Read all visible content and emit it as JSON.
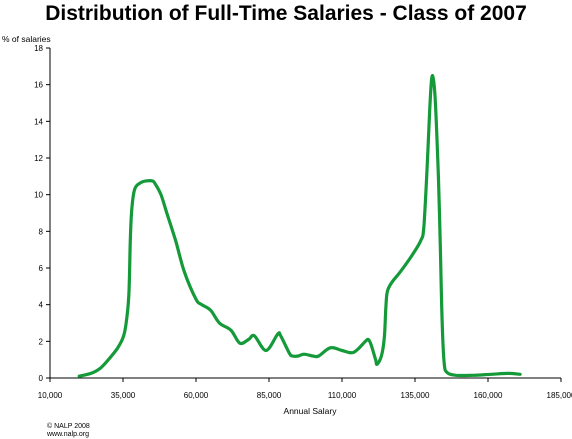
{
  "chart_data": {
    "type": "line",
    "title": "Distribution of Full-Time Salaries - Class of 2007",
    "xlabel": "Annual Salary",
    "ylabel": "% of salaries",
    "xlim": [
      10000,
      185000
    ],
    "ylim": [
      0,
      18
    ],
    "xticks": [
      "10,000",
      "35,000",
      "60,000",
      "85,000",
      "110,000",
      "135,000",
      "160,000",
      "185,000"
    ],
    "yticks": [
      "0",
      "2",
      "4",
      "6",
      "8",
      "10",
      "12",
      "14",
      "16",
      "18"
    ],
    "grid": false,
    "legend": "none",
    "series": [
      {
        "color": "#159a3a",
        "points": [
          [
            20000,
            0.1
          ],
          [
            24000,
            0.25
          ],
          [
            27000,
            0.5
          ],
          [
            30000,
            1.0
          ],
          [
            33000,
            1.6
          ],
          [
            35000,
            2.2
          ],
          [
            36000,
            2.9
          ],
          [
            37000,
            4.5
          ],
          [
            37500,
            7.5
          ],
          [
            38000,
            9.2
          ],
          [
            39000,
            10.3
          ],
          [
            41000,
            10.65
          ],
          [
            43000,
            10.75
          ],
          [
            45000,
            10.75
          ],
          [
            46000,
            10.6
          ],
          [
            48000,
            10.0
          ],
          [
            50000,
            9.0
          ],
          [
            53000,
            7.5
          ],
          [
            56000,
            5.8
          ],
          [
            60000,
            4.3
          ],
          [
            62000,
            4.0
          ],
          [
            65000,
            3.7
          ],
          [
            68000,
            3.0
          ],
          [
            72000,
            2.6
          ],
          [
            75000,
            1.9
          ],
          [
            78000,
            2.1
          ],
          [
            80000,
            2.3
          ],
          [
            84000,
            1.5
          ],
          [
            88000,
            2.4
          ],
          [
            89000,
            2.3
          ],
          [
            92000,
            1.35
          ],
          [
            93000,
            1.2
          ],
          [
            95000,
            1.2
          ],
          [
            97000,
            1.3
          ],
          [
            100000,
            1.2
          ],
          [
            102000,
            1.2
          ],
          [
            106000,
            1.65
          ],
          [
            110000,
            1.5
          ],
          [
            114000,
            1.4
          ],
          [
            118000,
            2.0
          ],
          [
            119000,
            2.1
          ],
          [
            120000,
            1.8
          ],
          [
            121500,
            1.0
          ],
          [
            122000,
            0.75
          ],
          [
            123500,
            1.2
          ],
          [
            124500,
            2.2
          ],
          [
            125000,
            3.8
          ],
          [
            125500,
            4.7
          ],
          [
            127000,
            5.2
          ],
          [
            130000,
            5.8
          ],
          [
            134000,
            6.7
          ],
          [
            137000,
            7.5
          ],
          [
            138000,
            8.2
          ],
          [
            139000,
            11.0
          ],
          [
            140000,
            14.5
          ],
          [
            140700,
            16.3
          ],
          [
            141300,
            16.3
          ],
          [
            142000,
            15.0
          ],
          [
            143000,
            11.0
          ],
          [
            143700,
            7.0
          ],
          [
            144300,
            3.0
          ],
          [
            145000,
            0.8
          ],
          [
            146000,
            0.3
          ],
          [
            149000,
            0.15
          ],
          [
            155000,
            0.15
          ],
          [
            161000,
            0.2
          ],
          [
            167000,
            0.25
          ],
          [
            171000,
            0.2
          ]
        ]
      }
    ]
  },
  "footer": {
    "line1": "© NALP 2008",
    "line2": "www.nalp.org"
  }
}
